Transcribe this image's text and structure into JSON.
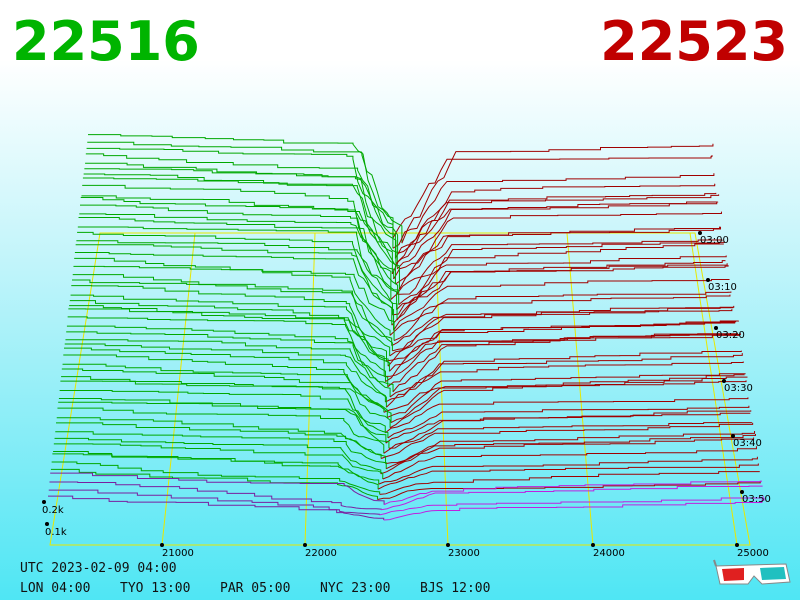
{
  "header": {
    "bid": "22516",
    "ask": "22523"
  },
  "price_axis": {
    "ticks": [
      "21000",
      "22000",
      "23000",
      "24000",
      "25000"
    ]
  },
  "depth_axis": {
    "ticks": [
      "0.2k",
      "0.1k"
    ]
  },
  "time_axis": {
    "ticks": [
      "03:00",
      "03:10",
      "03:20",
      "03:30",
      "03:40",
      "03:50"
    ]
  },
  "footer": {
    "utc": "UTC 2023-02-09 04:00",
    "clocks": [
      "LON 04:00",
      "TYO 13:00",
      "PAR 05:00",
      "NYC 23:00",
      "BJS 12:00"
    ]
  }
}
